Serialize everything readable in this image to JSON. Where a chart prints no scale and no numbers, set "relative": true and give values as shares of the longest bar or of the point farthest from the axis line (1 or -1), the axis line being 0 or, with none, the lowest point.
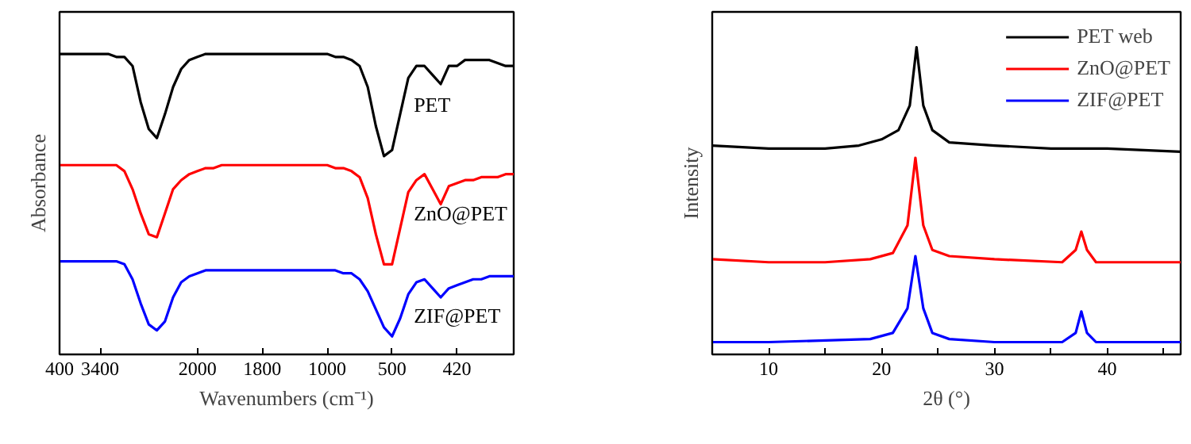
{
  "chart_data": [
    {
      "type": "line",
      "xlabel": "Wavenumbers (cm⁻¹)",
      "ylabel": "Absorbance",
      "relative": true,
      "legend": false,
      "grid": false,
      "categories": [
        "400",
        null,
        null,
        null,
        null,
        "3400",
        null,
        null,
        null,
        null,
        null,
        null,
        null,
        null,
        null,
        null,
        null,
        "2000",
        null,
        null,
        null,
        null,
        null,
        null,
        null,
        "1800",
        null,
        null,
        null,
        null,
        null,
        null,
        null,
        "1000",
        null,
        null,
        null,
        null,
        null,
        null,
        null,
        "500",
        null,
        null,
        null,
        null,
        null,
        null,
        null,
        "420",
        null,
        null,
        null,
        null,
        null,
        null,
        null
      ],
      "series": [
        {
          "name": "PET",
          "color": "#000000",
          "values": [
            1.0,
            1.0,
            1.0,
            1.0,
            1.0,
            1.0,
            1.0,
            0.99,
            0.99,
            0.96,
            0.84,
            0.75,
            0.72,
            0.8,
            0.89,
            0.95,
            0.98,
            0.99,
            1.0,
            1.0,
            1.0,
            1.0,
            1.0,
            1.0,
            1.0,
            1.0,
            1.0,
            1.0,
            1.0,
            1.0,
            1.0,
            1.0,
            1.0,
            1.0,
            0.99,
            0.99,
            0.98,
            0.96,
            0.89,
            0.76,
            0.66,
            0.68,
            0.8,
            0.92,
            0.96,
            0.96,
            0.93,
            0.9,
            0.96,
            0.96,
            0.98,
            0.98,
            0.98,
            0.98,
            0.97,
            0.96,
            0.96
          ]
        },
        {
          "name": "ZnO@PET",
          "color": "#ff0000",
          "values": [
            0.63,
            0.63,
            0.63,
            0.63,
            0.63,
            0.63,
            0.63,
            0.63,
            0.61,
            0.55,
            0.47,
            0.4,
            0.39,
            0.47,
            0.55,
            0.58,
            0.6,
            0.61,
            0.62,
            0.62,
            0.63,
            0.63,
            0.63,
            0.63,
            0.63,
            0.63,
            0.63,
            0.63,
            0.63,
            0.63,
            0.63,
            0.63,
            0.63,
            0.63,
            0.62,
            0.62,
            0.61,
            0.59,
            0.52,
            0.4,
            0.3,
            0.3,
            0.42,
            0.54,
            0.58,
            0.6,
            0.55,
            0.5,
            0.56,
            0.57,
            0.58,
            0.58,
            0.59,
            0.59,
            0.59,
            0.6,
            0.6
          ]
        },
        {
          "name": "ZIF@PET",
          "color": "#0000ff",
          "values": [
            0.31,
            0.31,
            0.31,
            0.31,
            0.31,
            0.31,
            0.31,
            0.31,
            0.3,
            0.25,
            0.17,
            0.1,
            0.08,
            0.11,
            0.19,
            0.24,
            0.26,
            0.27,
            0.28,
            0.28,
            0.28,
            0.28,
            0.28,
            0.28,
            0.28,
            0.28,
            0.28,
            0.28,
            0.28,
            0.28,
            0.28,
            0.28,
            0.28,
            0.28,
            0.28,
            0.27,
            0.27,
            0.25,
            0.21,
            0.15,
            0.09,
            0.06,
            0.12,
            0.2,
            0.24,
            0.25,
            0.22,
            0.19,
            0.22,
            0.23,
            0.24,
            0.25,
            0.25,
            0.26,
            0.26,
            0.26,
            0.26
          ]
        }
      ]
    },
    {
      "type": "line",
      "xlabel": "2θ (°)",
      "ylabel": "Intensity",
      "relative": true,
      "legend": "top right",
      "grid": false,
      "xlim": [
        5,
        46.5
      ],
      "xticks": [
        10,
        {
          "value": 15,
          "label": null
        },
        20,
        {
          "value": 25,
          "label": null
        },
        30,
        {
          "value": 35,
          "label": null
        },
        40,
        {
          "value": 45,
          "label": null
        }
      ],
      "series": [
        {
          "name": "PET web",
          "color": "#000000",
          "x": [
            5,
            10,
            15,
            18,
            20,
            21.5,
            22.5,
            23.1,
            23.7,
            24.5,
            26,
            30,
            35,
            40,
            46.5
          ],
          "values": [
            0.68,
            0.67,
            0.67,
            0.68,
            0.7,
            0.73,
            0.81,
            1.0,
            0.81,
            0.73,
            0.69,
            0.68,
            0.67,
            0.67,
            0.66
          ]
        },
        {
          "name": "ZnO@PET",
          "color": "#ff0000",
          "x": [
            5,
            10,
            15,
            19,
            21,
            22.3,
            23.0,
            23.7,
            24.5,
            26,
            30,
            36,
            37.2,
            37.7,
            38.2,
            39,
            46.5
          ],
          "values": [
            0.31,
            0.3,
            0.3,
            0.31,
            0.33,
            0.42,
            0.64,
            0.42,
            0.34,
            0.32,
            0.31,
            0.3,
            0.34,
            0.4,
            0.34,
            0.3,
            0.3
          ]
        },
        {
          "name": "ZIF@PET",
          "color": "#0000ff",
          "x": [
            5,
            10,
            19,
            21,
            22.3,
            23.0,
            23.7,
            24.5,
            26,
            30,
            36,
            37.2,
            37.7,
            38.2,
            39,
            46.5
          ],
          "values": [
            0.04,
            0.04,
            0.05,
            0.07,
            0.15,
            0.32,
            0.15,
            0.07,
            0.05,
            0.04,
            0.04,
            0.07,
            0.14,
            0.07,
            0.04,
            0.04
          ]
        }
      ]
    }
  ]
}
